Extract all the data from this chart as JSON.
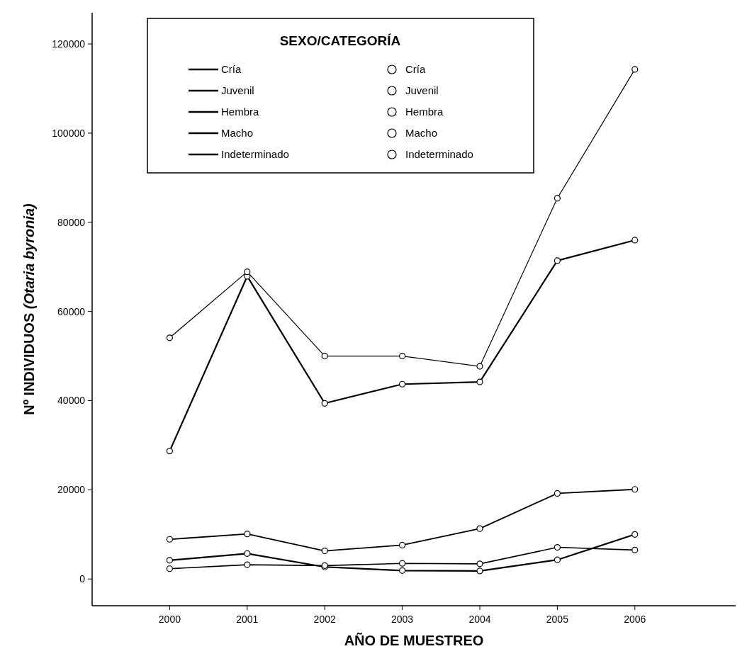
{
  "chart_data": {
    "type": "line",
    "xlabel": "AÑO DE MUESTREO",
    "ylabel": "Nº INDIVIDUOS  (Otaria byronia)",
    "legend_title": "SEXO/CATEGORÍA",
    "x": [
      2000,
      2001,
      2002,
      2003,
      2004,
      2005,
      2006
    ],
    "xlim": [
      1999,
      2007.3
    ],
    "xticks": [
      2000,
      2001,
      2002,
      2003,
      2004,
      2005,
      2006
    ],
    "ylim": [
      -6000,
      127000
    ],
    "yticks": [
      0,
      20000,
      40000,
      60000,
      80000,
      100000,
      120000
    ],
    "marker": "circle",
    "line_style": "solid",
    "grid": false,
    "legend": "top left",
    "series": [
      {
        "name": "Cría",
        "color": "#000000",
        "values": [
          28700,
          67900,
          39400,
          43700,
          44200,
          71400,
          76000
        ]
      },
      {
        "name": "Juvenil",
        "color": "#000000",
        "values": [
          4200,
          5700,
          2700,
          1900,
          1800,
          4300,
          10000
        ]
      },
      {
        "name": "Hembra",
        "color": "#000000",
        "values": [
          54100,
          68900,
          50000,
          50000,
          47700,
          85400,
          114300
        ]
      },
      {
        "name": "Macho",
        "color": "#000000",
        "values": [
          8900,
          10100,
          6300,
          7600,
          11300,
          19200,
          20100
        ]
      },
      {
        "name": "Indeterminado",
        "color": "#000000",
        "values": [
          2300,
          3200,
          3000,
          3500,
          3400,
          7100,
          6500
        ]
      }
    ]
  }
}
